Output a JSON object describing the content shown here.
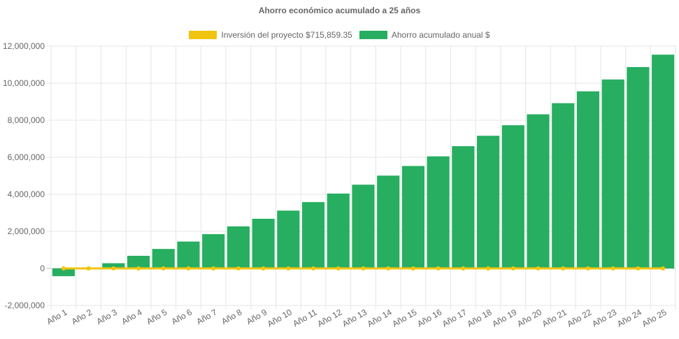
{
  "chart_data": {
    "type": "bar",
    "title": "Ahorro económico acumulado a 25 años",
    "categories": [
      "Año 1",
      "Año 2",
      "Año 3",
      "Año 4",
      "Año 5",
      "Año 6",
      "Año 7",
      "Año 8",
      "Año 9",
      "Año 10",
      "Año 11",
      "Año 12",
      "Año 13",
      "Año 14",
      "Año 15",
      "Año 16",
      "Año 17",
      "Año 18",
      "Año 19",
      "Año 20",
      "Año 21",
      "Año 22",
      "Año 23",
      "Año 24",
      "Año 25"
    ],
    "series": [
      {
        "name": "Inversión del proyecto $715,859.35",
        "type": "line",
        "color": "#f1c40f",
        "values": [
          0,
          0,
          0,
          0,
          0,
          0,
          0,
          0,
          0,
          0,
          0,
          0,
          0,
          0,
          0,
          0,
          0,
          0,
          0,
          0,
          0,
          0,
          0,
          0,
          0
        ]
      },
      {
        "name": "Ahorro acumulado anual $",
        "type": "bar",
        "color": "#27ae60",
        "values": [
          -420000,
          0,
          280000,
          680000,
          1050000,
          1450000,
          1850000,
          2270000,
          2680000,
          3120000,
          3580000,
          4040000,
          4520000,
          5010000,
          5530000,
          6050000,
          6600000,
          7160000,
          7730000,
          8320000,
          8920000,
          9560000,
          10200000,
          10870000,
          11540000
        ]
      }
    ],
    "ylim": [
      -2000000,
      12000000
    ],
    "yticks": [
      -2000000,
      0,
      2000000,
      4000000,
      6000000,
      8000000,
      10000000,
      12000000
    ],
    "ytick_labels": [
      "-2,000,000",
      "0",
      "2,000,000",
      "4,000,000",
      "6,000,000",
      "8,000,000",
      "10,000,000",
      "12,000,000"
    ],
    "grid": true,
    "legend_position": "top"
  }
}
